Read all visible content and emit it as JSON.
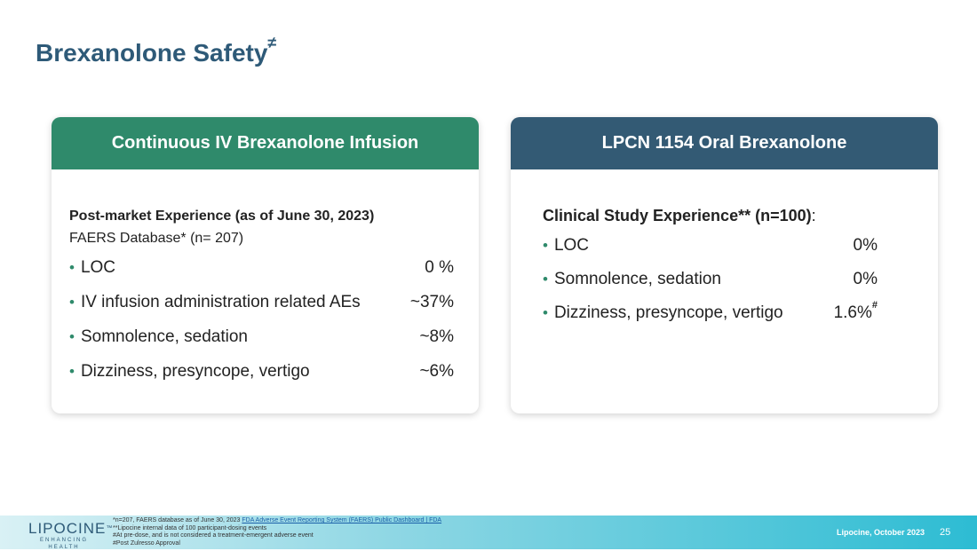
{
  "slide": {
    "title": "Brexanolone Safety",
    "title_mark": "≠"
  },
  "left_card": {
    "header": "Continuous IV Brexanolone Infusion",
    "heading": "Post-market Experience (as of June 30, 2023)",
    "subheading": "FAERS Database* (n= 207)",
    "items": [
      {
        "label": "LOC",
        "value": "0 %"
      },
      {
        "label": "IV infusion administration related AEs",
        "value": "~37%"
      },
      {
        "label": "Somnolence, sedation",
        "value": "~8%"
      },
      {
        "label": "Dizziness, presyncope, vertigo",
        "value": "~6%"
      }
    ]
  },
  "right_card": {
    "header": "LPCN 1154 Oral Brexanolone",
    "heading": "Clinical Study Experience** (n=100)",
    "heading_suffix": ":",
    "items": [
      {
        "label": "LOC",
        "value": "0%",
        "mark": ""
      },
      {
        "label": "Somnolence, sedation",
        "value": "0%",
        "mark": ""
      },
      {
        "label": "Dizziness, presyncope, vertigo",
        "value": "1.6%",
        "mark": "#"
      }
    ]
  },
  "footer": {
    "logo_text": "LIPOCINE",
    "logo_tm": "™",
    "logo_tagline": "ENHANCING HEALTH",
    "note1_text": "*n=207, FAERS database as of June 30, 2023 ",
    "note1_link": "FDA Adverse Event Reporting System (FAERS) Public Dashboard | FDA",
    "note2": "**Lipocine internal data of 100 participant-dosing events",
    "note3": "#At pre-dose, and is not considered a treatment-emergent adverse event",
    "note4": "#Post Zulresso Approval",
    "credit": "Lipocine, October 2023",
    "page_number": "25"
  },
  "colors": {
    "title": "#2e5a78",
    "left_header": "#2f8a6b",
    "right_header": "#335a74",
    "bullet": "#2f8a6b",
    "footer_gradient_end": "#2dbcd3"
  }
}
